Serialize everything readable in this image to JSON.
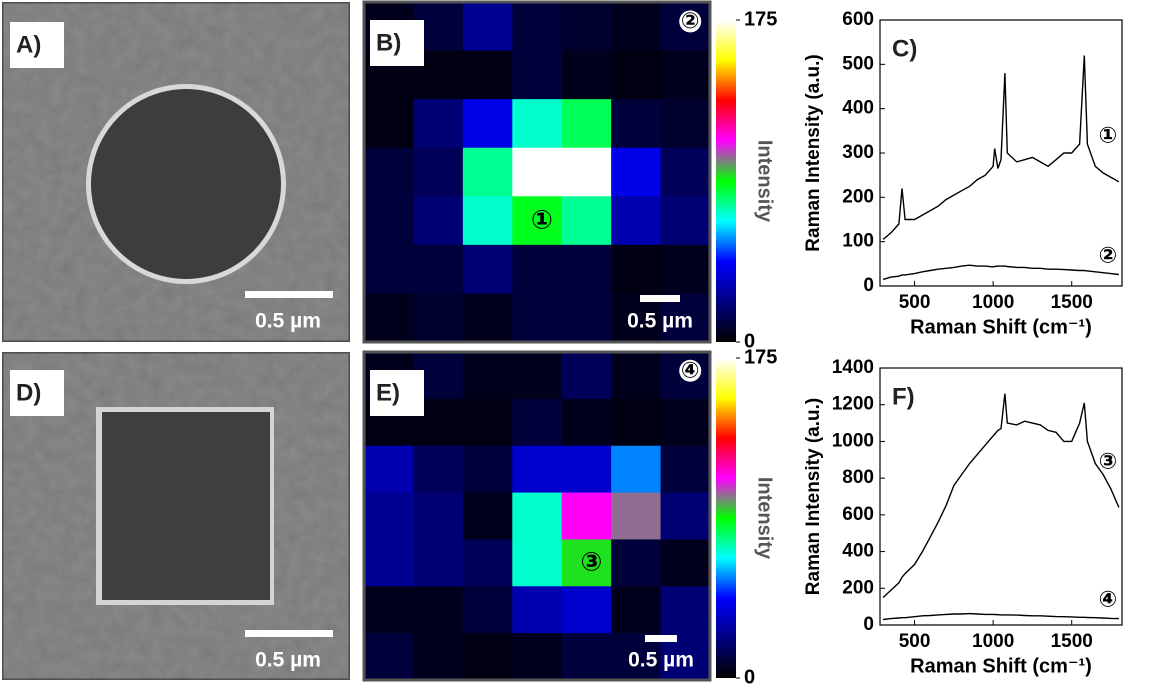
{
  "images": [
    {
      "label": "A)",
      "scale_bar": "0.5 µm"
    },
    {
      "label": "D)",
      "scale_bar": "0.5 µm"
    }
  ],
  "chart_data": [
    {
      "type": "heatmap",
      "label": "B)",
      "scale_bar": "0.5 µm",
      "annotations": [
        "①",
        "②"
      ],
      "colorbar_label": "Intensity",
      "zlim": [
        0,
        175
      ],
      "zticks": [
        0,
        175
      ],
      "colorscale": [
        "#000000",
        "#000080",
        "#0000ff",
        "#00ffff",
        "#00ff00",
        "#ff00ff",
        "#ff0000",
        "#ffff00",
        "#ffffff"
      ],
      "values": [
        [
          5,
          10,
          25,
          10,
          8,
          5,
          10
        ],
        [
          3,
          3,
          3,
          10,
          5,
          3,
          5
        ],
        [
          3,
          20,
          40,
          70,
          80,
          10,
          8
        ],
        [
          10,
          15,
          75,
          175,
          175,
          40,
          15
        ],
        [
          10,
          20,
          70,
          85,
          75,
          30,
          20
        ],
        [
          10,
          10,
          20,
          10,
          10,
          3,
          5
        ],
        [
          5,
          8,
          5,
          10,
          10,
          5,
          10
        ]
      ]
    },
    {
      "type": "line",
      "label": "C)",
      "xlabel": "Raman Shift (cm⁻¹)",
      "ylabel": "Raman Intensity (a.u.)",
      "xlim": [
        280,
        1820
      ],
      "ylim": [
        0,
        600
      ],
      "xticks": [
        500,
        1000,
        1500
      ],
      "yticks": [
        0,
        100,
        200,
        300,
        400,
        500,
        600
      ],
      "x": [
        300,
        350,
        400,
        420,
        440,
        500,
        550,
        600,
        650,
        700,
        750,
        800,
        850,
        900,
        950,
        1000,
        1010,
        1030,
        1050,
        1075,
        1090,
        1150,
        1200,
        1250,
        1300,
        1350,
        1400,
        1450,
        1500,
        1550,
        1580,
        1600,
        1650,
        1700,
        1750,
        1800
      ],
      "series": [
        {
          "name": "①",
          "color": "#000000",
          "values": [
            105,
            120,
            140,
            220,
            150,
            150,
            160,
            170,
            180,
            195,
            205,
            215,
            225,
            240,
            250,
            270,
            310,
            265,
            285,
            480,
            300,
            280,
            285,
            290,
            280,
            270,
            285,
            300,
            300,
            320,
            520,
            320,
            270,
            255,
            245,
            235
          ]
        },
        {
          "name": "②",
          "color": "#000000",
          "values": [
            15,
            20,
            22,
            25,
            25,
            28,
            32,
            35,
            38,
            40,
            42,
            45,
            47,
            45,
            45,
            43,
            44,
            45,
            45,
            45,
            44,
            42,
            42,
            40,
            40,
            38,
            38,
            37,
            36,
            35,
            35,
            34,
            32,
            30,
            28,
            26
          ]
        }
      ]
    },
    {
      "type": "heatmap",
      "label": "E)",
      "scale_bar": "0.5 µm",
      "annotations": [
        "③",
        "④"
      ],
      "colorbar_label": "Intensity",
      "zlim": [
        0,
        175
      ],
      "zticks": [
        0,
        175
      ],
      "colorscale": [
        "#000000",
        "#000080",
        "#0000ff",
        "#00ffff",
        "#00ff00",
        "#ff00ff",
        "#ff0000",
        "#ffff00",
        "#ffffff"
      ],
      "values": [
        [
          5,
          10,
          5,
          5,
          15,
          5,
          10
        ],
        [
          3,
          3,
          3,
          10,
          5,
          3,
          5
        ],
        [
          30,
          15,
          10,
          35,
          35,
          55,
          10
        ],
        [
          25,
          20,
          5,
          70,
          110,
          100,
          20
        ],
        [
          25,
          20,
          15,
          70,
          90,
          10,
          5
        ],
        [
          5,
          5,
          10,
          30,
          35,
          5,
          20
        ],
        [
          10,
          5,
          3,
          5,
          10,
          10,
          20
        ]
      ]
    },
    {
      "type": "line",
      "label": "F)",
      "xlabel": "Raman Shift (cm⁻¹)",
      "ylabel": "Raman Intensity (a.u.)",
      "xlim": [
        280,
        1820
      ],
      "ylim": [
        0,
        1400
      ],
      "xticks": [
        500,
        1000,
        1500
      ],
      "yticks": [
        0,
        200,
        400,
        600,
        800,
        1000,
        1200,
        1400
      ],
      "x": [
        300,
        350,
        400,
        420,
        440,
        500,
        550,
        600,
        650,
        700,
        750,
        800,
        850,
        900,
        950,
        1000,
        1010,
        1030,
        1050,
        1075,
        1090,
        1150,
        1200,
        1250,
        1300,
        1350,
        1400,
        1450,
        1500,
        1550,
        1580,
        1600,
        1650,
        1700,
        1750,
        1800
      ],
      "series": [
        {
          "name": "③",
          "color": "#000000",
          "values": [
            150,
            190,
            230,
            260,
            280,
            330,
            400,
            480,
            560,
            650,
            760,
            820,
            880,
            930,
            980,
            1030,
            1040,
            1060,
            1070,
            1260,
            1100,
            1090,
            1110,
            1100,
            1090,
            1060,
            1050,
            1000,
            1000,
            1100,
            1210,
            1000,
            880,
            820,
            740,
            640
          ]
        },
        {
          "name": "④",
          "color": "#000000",
          "values": [
            30,
            35,
            38,
            40,
            40,
            45,
            50,
            52,
            55,
            58,
            60,
            60,
            62,
            60,
            58,
            58,
            57,
            56,
            55,
            55,
            55,
            54,
            52,
            50,
            50,
            48,
            46,
            45,
            44,
            42,
            42,
            41,
            40,
            38,
            36,
            35
          ]
        }
      ]
    }
  ]
}
